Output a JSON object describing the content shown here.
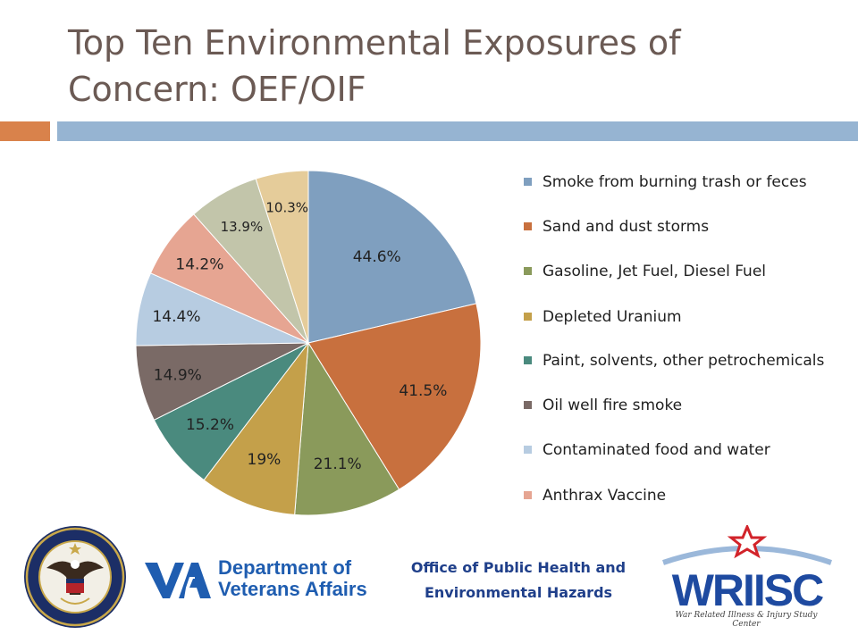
{
  "slide": {
    "title": "Top Ten Environmental Exposures of Concern: OEF/OIF"
  },
  "chart_data": {
    "type": "pie",
    "categories": [
      "Smoke from burning trash or feces",
      "Sand and dust storms",
      "Gasoline, Jet Fuel, Diesel Fuel",
      "Depleted Uranium",
      "Paint, solvents, other petrochemicals",
      "Oil well fire smoke",
      "Contaminated food and water",
      "Anthrax Vaccine",
      "",
      ""
    ],
    "values": [
      44.6,
      41.5,
      21.1,
      19,
      15.2,
      14.9,
      14.4,
      14.2,
      13.9,
      10.3
    ],
    "value_labels": [
      "44.6%",
      "41.5%",
      "21.1%",
      "19%",
      "15.2%",
      "14.9%",
      "14.4%",
      "14.2%",
      "13.9%",
      "10.3%"
    ],
    "colors": [
      "#7f9fbf",
      "#c8703e",
      "#8a9a5b",
      "#c4a04a",
      "#4a8a7e",
      "#7a6a66",
      "#b7cce1",
      "#e6a592",
      "#c2c5aa",
      "#e5cc9a"
    ],
    "start_angle_deg": 0,
    "direction": "clockwise",
    "legend": {
      "placement": "right",
      "entries": [
        "Smoke from burning trash or feces",
        "Sand and dust storms",
        "Gasoline, Jet Fuel, Diesel Fuel",
        "Depleted Uranium",
        "Paint, solvents, other petrochemicals",
        "Oil well fire smoke",
        "Contaminated food and water",
        "Anthrax Vaccine"
      ]
    }
  },
  "footer": {
    "va_name_line1": "Department of",
    "va_name_line2": "Veterans Affairs",
    "va_seal_text": "DEPARTMENT OF VETERANS AFFAIRS · UNITED STATES OF AMERICA",
    "office_line1": "Office of Public Health and",
    "office_line2": "Environmental Hazards",
    "wriisc_logo": "WRIISC",
    "wriisc_full": "War Related Illness & Injury Study Center"
  },
  "colors": {
    "title": "#6b5a54",
    "accent_orange": "#d9824b",
    "accent_blue": "#96b4d2",
    "va_blue": "#1f5db0",
    "wriisc_blue": "#1e4aa0",
    "wriisc_red": "#d2232a"
  }
}
